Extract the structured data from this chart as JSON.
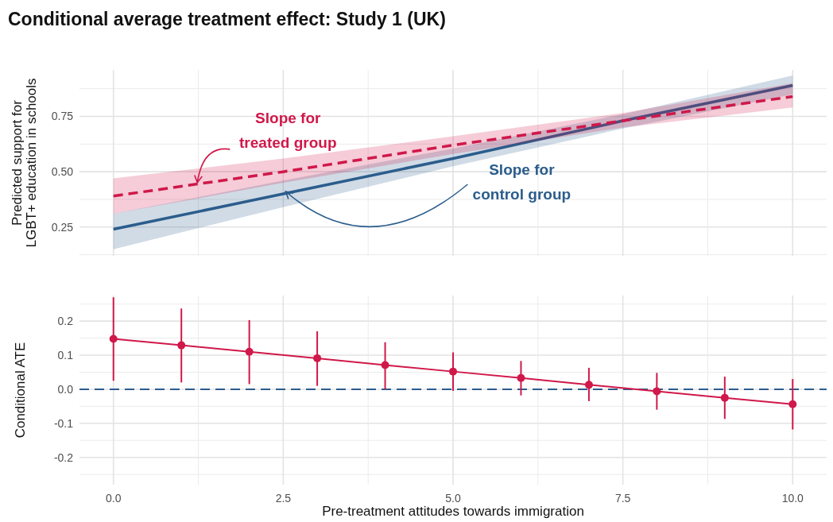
{
  "chart_data": [
    {
      "type": "line",
      "title": "Conditional average treatment effect: Study 1 (UK)",
      "ylabel": "Predicted support for\nLGBT+ education in schools",
      "xlim": [
        -0.5,
        10.5
      ],
      "xticks": [
        0,
        2.5,
        5,
        7.5,
        10
      ],
      "ylim": [
        0.12,
        0.96
      ],
      "yticks": [
        {
          "value": 0.25,
          "label": "0.25"
        },
        {
          "value": 0.5,
          "label": "0.50"
        },
        {
          "value": 0.75,
          "label": "0.75"
        }
      ],
      "tick_labels": "y",
      "grid": true,
      "series": [
        {
          "color": "#2b5d8c",
          "line_style": "solid",
          "x": [
            0,
            2.5,
            5,
            7.5,
            10
          ],
          "values": [
            0.24,
            0.4,
            0.56,
            0.73,
            0.89
          ],
          "lower": [
            0.15,
            0.34,
            0.525,
            0.695,
            0.85
          ],
          "upper": [
            0.31,
            0.46,
            0.605,
            0.76,
            0.935
          ]
        },
        {
          "color": "#d0184a",
          "line_style": "dashed",
          "x": [
            0,
            2.5,
            5,
            7.5,
            10
          ],
          "values": [
            0.39,
            0.5,
            0.62,
            0.73,
            0.84
          ],
          "lower": [
            0.31,
            0.45,
            0.58,
            0.7,
            0.79
          ],
          "upper": [
            0.47,
            0.56,
            0.66,
            0.765,
            0.9
          ]
        }
      ],
      "annotations": [
        {
          "text": "Slope for\ntreated group",
          "x": 1.2,
          "y": 0.44
        },
        {
          "text": "Slope for\ncontrol group",
          "x": 2.5,
          "y": 0.4
        }
      ]
    },
    {
      "type": "line",
      "xlabel": "Pre-treatment attitudes towards immigration",
      "ylabel": "Conditional ATE",
      "xlim": [
        -0.5,
        10.5
      ],
      "xticks": [
        {
          "value": 0,
          "label": "0.0"
        },
        {
          "value": 2.5,
          "label": "2.5"
        },
        {
          "value": 5,
          "label": "5.0"
        },
        {
          "value": 7.5,
          "label": "7.5"
        },
        {
          "value": 10,
          "label": "10.0"
        }
      ],
      "ylim": [
        -0.28,
        0.275
      ],
      "yticks": [
        {
          "value": -0.2,
          "label": "-0.2"
        },
        {
          "value": -0.1,
          "label": "-0.1"
        },
        {
          "value": 0,
          "label": "0.0"
        },
        {
          "value": 0.1,
          "label": "0.1"
        },
        {
          "value": 0.2,
          "label": "0.2"
        }
      ],
      "grid": true,
      "marker": "circle",
      "series": [
        {
          "color": "#d0184a",
          "line_style": "solid",
          "x": [
            0,
            1,
            2,
            3,
            4,
            5,
            6,
            7,
            8,
            9,
            10
          ],
          "values": [
            0.148,
            0.129,
            0.11,
            0.091,
            0.071,
            0.052,
            0.033,
            0.013,
            -0.006,
            -0.025,
            -0.044
          ],
          "errors": [
            [
              0.025,
              0.27
            ],
            [
              0.02,
              0.237
            ],
            [
              0.015,
              0.203
            ],
            [
              0.01,
              0.17
            ],
            [
              0.0,
              0.138
            ],
            [
              -0.005,
              0.108
            ],
            [
              -0.018,
              0.083
            ],
            [
              -0.035,
              0.063
            ],
            [
              -0.06,
              0.048
            ],
            [
              -0.087,
              0.037
            ],
            [
              -0.118,
              0.03
            ]
          ]
        }
      ],
      "ref_lines": [
        {
          "axis": "y",
          "value": 0,
          "color": "#2b5d8c",
          "line_style": "dashed"
        }
      ]
    }
  ]
}
